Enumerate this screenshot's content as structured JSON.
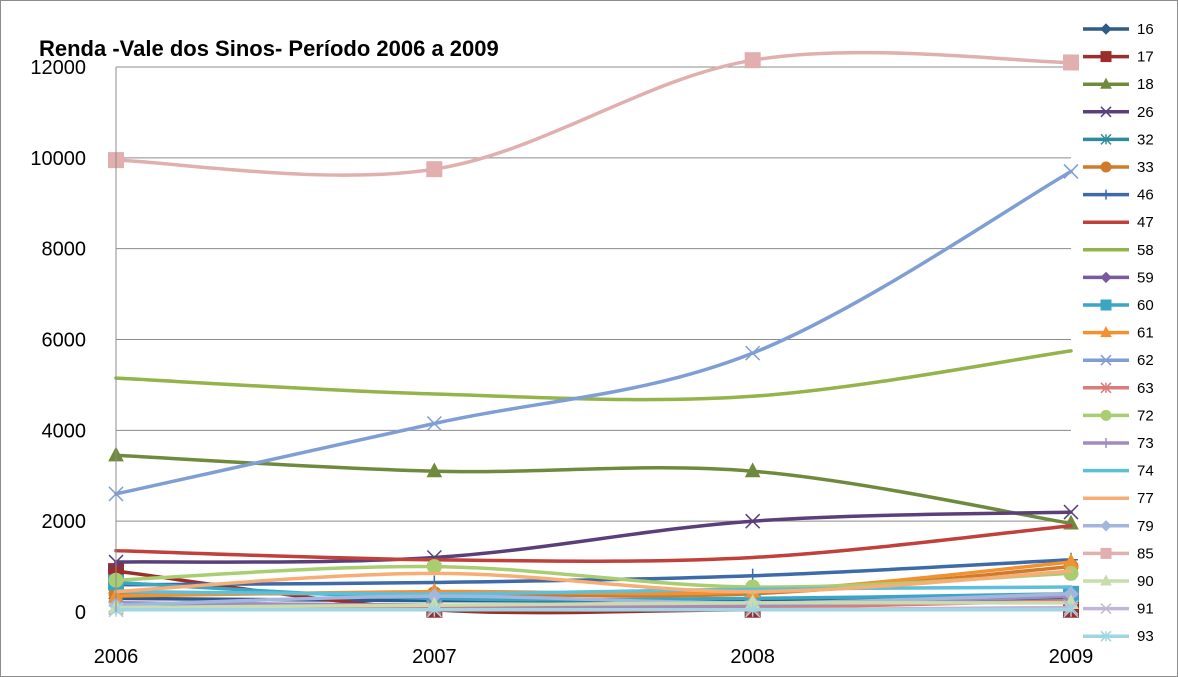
{
  "chart_data": {
    "type": "line",
    "title": "Renda -Vale dos Sinos- Período 2006 a 2009",
    "xlabel": "",
    "ylabel": "",
    "categories": [
      "2006",
      "2007",
      "2008",
      "2009"
    ],
    "ylim": [
      0,
      12000
    ],
    "yticks": [
      0,
      2000,
      4000,
      6000,
      8000,
      10000,
      12000
    ],
    "grid": true,
    "smooth": true,
    "legend_position": "right",
    "series": [
      {
        "name": "16",
        "color": "#2E5C8A",
        "marker": "diamond",
        "values": [
          300,
          250,
          250,
          300
        ]
      },
      {
        "name": "17",
        "color": "#9B2D2A",
        "marker": "square",
        "values": [
          900,
          50,
          50,
          50
        ]
      },
      {
        "name": "18",
        "color": "#6E8B3D",
        "marker": "triangle",
        "values": [
          3450,
          3100,
          3100,
          1950
        ]
      },
      {
        "name": "26",
        "color": "#5B3F7A",
        "marker": "x",
        "values": [
          1100,
          1200,
          2000,
          2200
        ]
      },
      {
        "name": "32",
        "color": "#2E8C9A",
        "marker": "star",
        "values": [
          150,
          150,
          150,
          250
        ]
      },
      {
        "name": "33",
        "color": "#D07A2C",
        "marker": "circle",
        "values": [
          400,
          400,
          400,
          1000
        ]
      },
      {
        "name": "46",
        "color": "#3D6AA8",
        "marker": "plus",
        "values": [
          600,
          650,
          800,
          1150
        ]
      },
      {
        "name": "47",
        "color": "#C0403C",
        "marker": "none",
        "values": [
          1350,
          1150,
          1200,
          1900
        ]
      },
      {
        "name": "58",
        "color": "#92B44A",
        "marker": "none",
        "values": [
          5150,
          4800,
          4750,
          5750
        ]
      },
      {
        "name": "59",
        "color": "#7A5A9E",
        "marker": "diamond",
        "values": [
          200,
          150,
          150,
          350
        ]
      },
      {
        "name": "60",
        "color": "#3AA6C4",
        "marker": "square",
        "values": [
          650,
          300,
          300,
          400
        ]
      },
      {
        "name": "61",
        "color": "#F3902F",
        "marker": "triangle",
        "values": [
          350,
          450,
          450,
          1100
        ]
      },
      {
        "name": "62",
        "color": "#7F9ED4",
        "marker": "x",
        "values": [
          2600,
          4150,
          5700,
          9700
        ]
      },
      {
        "name": "63",
        "color": "#DA7C7A",
        "marker": "star",
        "values": [
          100,
          100,
          100,
          250
        ]
      },
      {
        "name": "72",
        "color": "#A9CE72",
        "marker": "circle",
        "values": [
          700,
          1000,
          550,
          850
        ]
      },
      {
        "name": "73",
        "color": "#A18CC0",
        "marker": "plus",
        "values": [
          200,
          150,
          150,
          350
        ]
      },
      {
        "name": "74",
        "color": "#5CC0DA",
        "marker": "none",
        "values": [
          450,
          400,
          500,
          550
        ]
      },
      {
        "name": "77",
        "color": "#F7AD74",
        "marker": "none",
        "values": [
          450,
          850,
          450,
          900
        ]
      },
      {
        "name": "79",
        "color": "#A3B6DD",
        "marker": "diamond",
        "values": [
          150,
          350,
          200,
          400
        ]
      },
      {
        "name": "85",
        "color": "#E0AFAE",
        "marker": "square",
        "values": [
          9950,
          9750,
          12150,
          12100
        ]
      },
      {
        "name": "90",
        "color": "#C9DCAE",
        "marker": "triangle",
        "values": [
          100,
          150,
          200,
          200
        ]
      },
      {
        "name": "91",
        "color": "#C2B6D6",
        "marker": "x",
        "values": [
          50,
          50,
          50,
          100
        ]
      },
      {
        "name": "93",
        "color": "#A2D5E3",
        "marker": "star",
        "values": [
          50,
          50,
          50,
          50
        ]
      }
    ]
  }
}
